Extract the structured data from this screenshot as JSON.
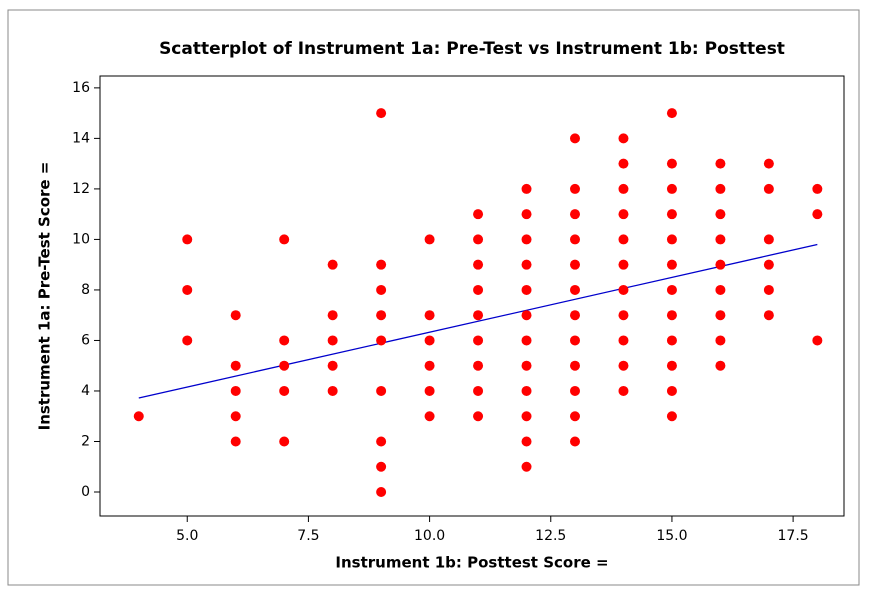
{
  "chart_data": {
    "type": "scatter",
    "title": "Scatterplot of Instrument 1a: Pre-Test  vs Instrument 1b: Posttest",
    "x_label": "Instrument 1b: Posttest Score =",
    "y_label": "Instrument 1a: Pre-Test Score =",
    "color": "#ff0000",
    "x": [
      4,
      5,
      5,
      5,
      6,
      6,
      6,
      6,
      6,
      7,
      7,
      7,
      7,
      7,
      8,
      8,
      8,
      8,
      8,
      9,
      9,
      9,
      9,
      9,
      9,
      9,
      9,
      9,
      10,
      10,
      10,
      10,
      10,
      10,
      11,
      11,
      11,
      11,
      11,
      11,
      11,
      11,
      11,
      12,
      12,
      12,
      12,
      12,
      12,
      12,
      12,
      12,
      12,
      12,
      12,
      13,
      13,
      13,
      13,
      13,
      13,
      13,
      13,
      13,
      13,
      13,
      13,
      14,
      14,
      14,
      14,
      14,
      14,
      14,
      14,
      14,
      14,
      14,
      15,
      15,
      15,
      15,
      15,
      15,
      15,
      15,
      15,
      15,
      15,
      15,
      16,
      16,
      16,
      16,
      16,
      16,
      16,
      16,
      16,
      17,
      17,
      17,
      17,
      17,
      17,
      18,
      18,
      18
    ],
    "y": [
      3,
      10,
      8,
      6,
      7,
      5,
      4,
      3,
      2,
      10,
      6,
      5,
      4,
      2,
      9,
      7,
      6,
      5,
      4,
      15,
      9,
      8,
      7,
      6,
      4,
      2,
      1,
      0,
      10,
      7,
      6,
      5,
      4,
      3,
      11,
      10,
      9,
      8,
      7,
      6,
      5,
      4,
      3,
      12,
      11,
      10,
      9,
      8,
      7,
      6,
      5,
      4,
      3,
      2,
      1,
      14,
      12,
      11,
      10,
      9,
      8,
      7,
      6,
      5,
      4,
      3,
      2,
      14,
      13,
      12,
      11,
      10,
      9,
      8,
      7,
      6,
      5,
      4,
      15,
      13,
      12,
      11,
      10,
      9,
      8,
      7,
      6,
      5,
      4,
      3,
      13,
      12,
      11,
      10,
      9,
      8,
      7,
      6,
      5,
      13,
      12,
      10,
      9,
      8,
      7,
      12,
      11,
      6
    ],
    "fit_line": {
      "color": "#0000cc",
      "x": [
        4,
        18
      ],
      "y": [
        3.72,
        9.8
      ]
    },
    "xlim": [
      3.2,
      18.55
    ],
    "ylim": [
      -0.95,
      16.47
    ],
    "xticks": [
      {
        "value": 5,
        "label": "5.0"
      },
      7.5,
      {
        "value": 10,
        "label": "10.0"
      },
      12.5,
      {
        "value": 15,
        "label": "15.0"
      },
      17.5
    ],
    "yticks": [
      0,
      2,
      4,
      6,
      8,
      10,
      12,
      14,
      16
    ]
  }
}
